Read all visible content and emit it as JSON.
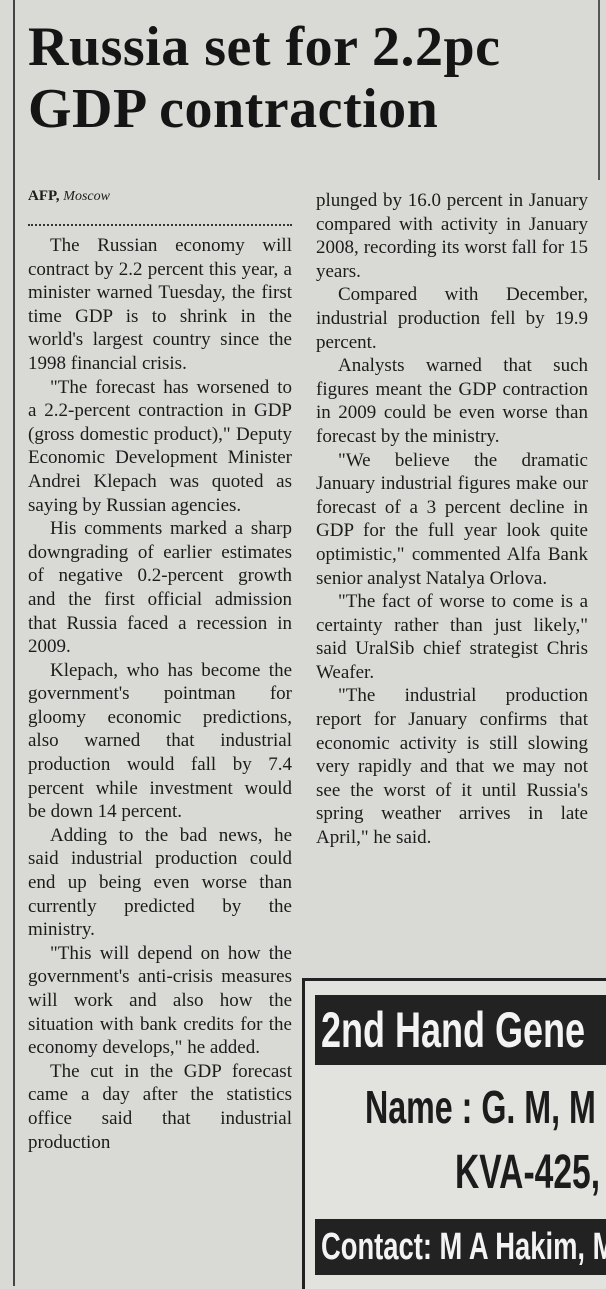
{
  "article": {
    "headline": "Russia set for 2.2pc GDP contraction",
    "byline": {
      "agency": "AFP,",
      "place": "Moscow"
    },
    "columns": [
      {
        "paragraphs": [
          "The Russian economy will contract by 2.2 percent this year, a minister warned Tuesday, the first time GDP is to shrink in the world's largest country since the 1998 financial crisis.",
          "\"The forecast has worsened to a 2.2-percent contraction in GDP (gross domestic product),\" Deputy Economic Development Minister Andrei Klepach was quoted as saying by Russian agencies.",
          "His comments marked a sharp downgrading of earlier estimates of negative 0.2-percent growth and the first official admission that Russia faced a recession in 2009.",
          "Klepach, who has become the government's pointman for gloomy economic predictions, also warned that industrial production would fall by 7.4 percent while investment would be down 14 percent.",
          "Adding to the bad news, he said industrial production could end up being even worse than currently predicted by the ministry.",
          "\"This will depend on how the government's anti-crisis measures will work and also how the situation with bank credits for the economy develops,\" he added.",
          "The cut in the GDP forecast came a day after the statistics office said that industrial production"
        ]
      },
      {
        "paragraphs": [
          "plunged by 16.0 percent in January compared with activity in January 2008, recording its worst fall for 15 years.",
          "Compared with December, industrial production fell by 19.9 percent.",
          "Analysts warned that such figures meant the GDP contraction in 2009 could be even worse than forecast by the ministry.",
          "\"We believe the dramatic January industrial figures make our forecast of a 3 percent decline in GDP for the full year look quite optimistic,\" commented Alfa Bank senior analyst Natalya Orlova.",
          "\"The fact of worse to come is a certainty rather than just likely,\" said UralSib chief strategist Chris Weafer.",
          "\"The industrial production report for January confirms that economic activity is still slowing very rapidly and that we may not see the worst of it until Russia's spring weather arrives in late April,\" he said."
        ]
      }
    ]
  },
  "advert": {
    "heading": "2nd Hand Gene",
    "name": "Name : G. M, M",
    "rating": "KVA-425,",
    "contact": "Contact: M A Hakim, M"
  }
}
